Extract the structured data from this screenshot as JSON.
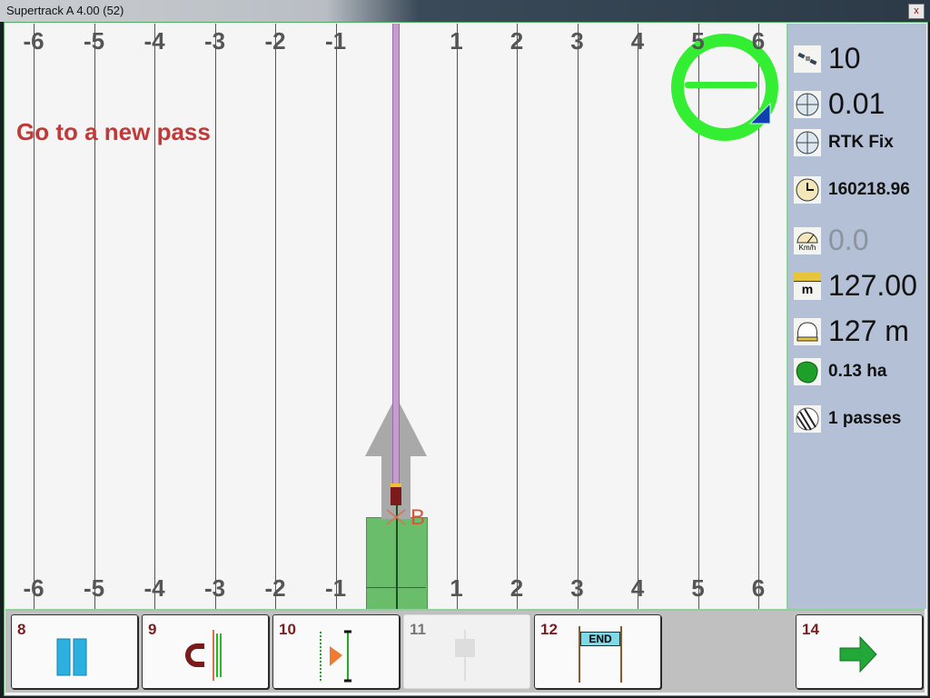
{
  "window": {
    "title": "Supertrack A 4.00 (52)",
    "close_label": "x"
  },
  "map": {
    "top_ticks": [
      "-6",
      "-5",
      "-4",
      "-3",
      "-2",
      "-1",
      "1",
      "2",
      "3",
      "4",
      "5",
      "6"
    ],
    "bottom_ticks": [
      "-6",
      "-5",
      "-4",
      "-3",
      "-2",
      "-1",
      "1",
      "2",
      "3",
      "4",
      "5",
      "6"
    ],
    "message": "Go to a new pass",
    "point_label": "B",
    "colors": {
      "message": "#c13a3a",
      "guide_line": "#c69bd0",
      "worked_area": "#5cb85c",
      "arrow": "#a9a9a9",
      "lightbar": "#33ee33"
    }
  },
  "sidebar": {
    "satellites": {
      "icon": "satellite-icon",
      "value": "10"
    },
    "accuracy": {
      "icon": "crosshair-icon",
      "value": "0.01"
    },
    "fix": {
      "icon": "crosshair-icon",
      "value": "RTK Fix"
    },
    "time": {
      "icon": "clock-icon",
      "value": "160218.96"
    },
    "speed": {
      "icon": "speedometer-icon",
      "unit": "Km/h",
      "value": "0.0"
    },
    "width": {
      "icon": "ruler-icon",
      "unit": "m",
      "value": "127.00"
    },
    "distance": {
      "icon": "field-distance-icon",
      "value": "127 m"
    },
    "area": {
      "icon": "area-icon",
      "value": "0.13 ha"
    },
    "passes": {
      "icon": "passes-icon",
      "value": "1 passes"
    }
  },
  "toolbar": {
    "buttons": [
      {
        "num": "8",
        "icon": "pause-icon"
      },
      {
        "num": "9",
        "icon": "magnet-snap-icon"
      },
      {
        "num": "10",
        "icon": "next-pass-icon"
      },
      {
        "num": "11",
        "icon": "checkered-flag-icon",
        "disabled": true
      },
      {
        "num": "12",
        "icon": "end-icon",
        "label": "END"
      },
      {
        "num": "14",
        "icon": "arrow-right-icon"
      }
    ]
  }
}
